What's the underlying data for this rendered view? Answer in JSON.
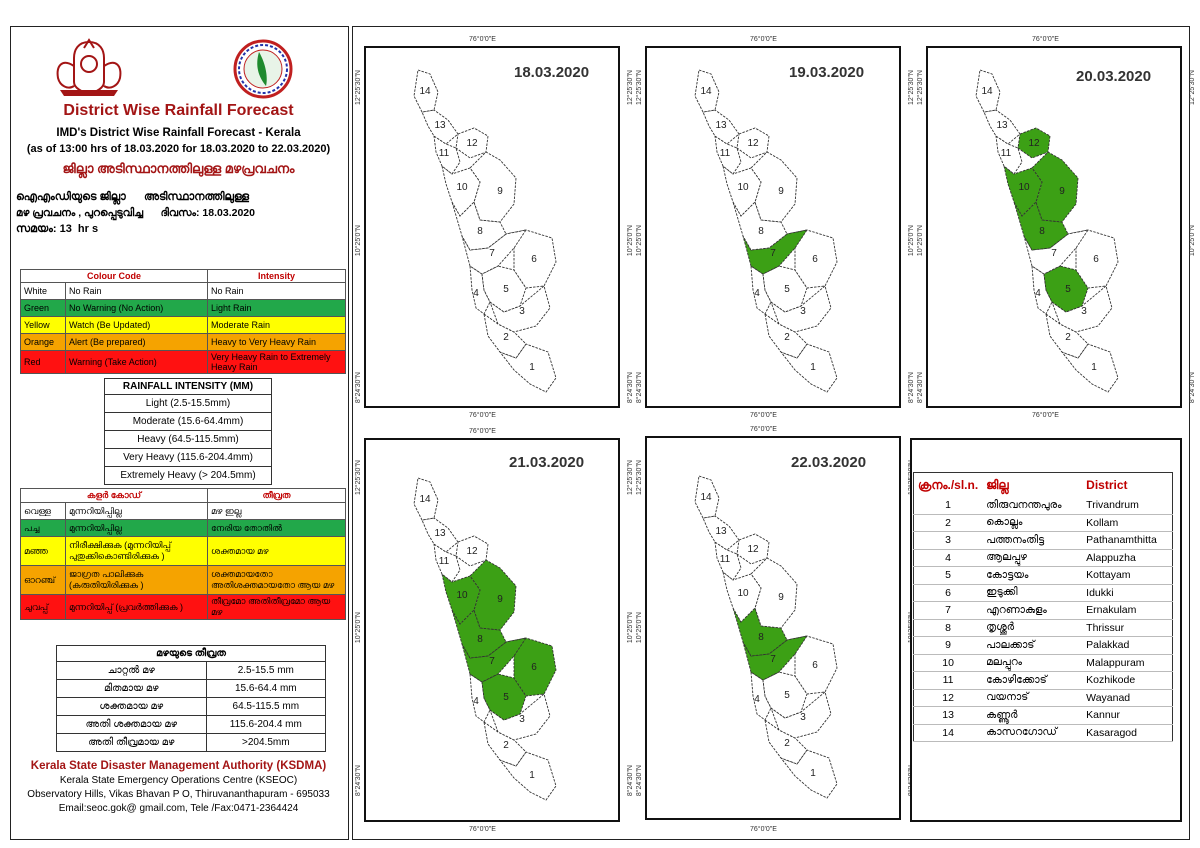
{
  "header": {
    "title": "District Wise Rainfall Forecast",
    "subtitle": "IMD's District Wise Rainfall Forecast - Kerala",
    "issued_line": "(as of 13:00 hrs of 18.03.2020  for 18.03.2020  to 22.03.2020)",
    "title_ml": "ജില്ലാ അടിസ്ഥാനത്തിലുള്ള മഴപ്രവചനം",
    "desc_ml_1": "ഐഎംഡിയുടെ ജില്ലാ      അടിസ്ഥാനത്തിലുള്ള",
    "desc_ml_2": "മഴ പ്രവചനം , പുറപ്പെടുവിച്ച      ദിവസം: 18.03.2020",
    "desc_ml_3": "സമയം: 13  hr s"
  },
  "colour_table": {
    "headers": [
      "Colour Code",
      "Intensity"
    ],
    "rows": [
      {
        "colour": "White",
        "code": "No Rain",
        "intensity": "No Rain",
        "bg": "#ffffff"
      },
      {
        "colour": "Green",
        "code": "No Warning (No Action)",
        "intensity": "Light Rain",
        "bg": "#22a84a"
      },
      {
        "colour": "Yellow",
        "code": "Watch (Be Updated)",
        "intensity": "Moderate Rain",
        "bg": "#ffff00"
      },
      {
        "colour": "Orange",
        "code": "Alert (Be prepared)",
        "intensity": "Heavy to Very Heavy Rain",
        "bg": "#f5a300"
      },
      {
        "colour": "Red",
        "code": "Warning (Take Action)",
        "intensity": "Very Heavy Rain to Extremely Heavy Rain",
        "bg": "#ff1111"
      }
    ]
  },
  "rainfall_intensity": {
    "header": "RAINFALL INTENSITY (MM)",
    "rows": [
      "Light (2.5-15.5mm)",
      "Moderate (15.6-64.4mm)",
      "Heavy (64.5-115.5mm)",
      "Very Heavy (115.6-204.4mm)",
      "Extremely Heavy (> 204.5mm)"
    ]
  },
  "colour_table_ml": {
    "headers": [
      "കളർ കോഡ്",
      "തീവ്രത"
    ],
    "rows": [
      {
        "colour": "വെള്ള",
        "code": "മുന്നറിയിപ്പില്ല",
        "intensity": "മഴ ഇല്ല"
      },
      {
        "colour": "പച്ച",
        "code": "മുന്നറിയിപ്പില്ല",
        "intensity": "നേരിയ തോതിൽ"
      },
      {
        "colour": "മഞ്ഞ",
        "code": "നിരീക്ഷിക്കുക (മുന്നറിയിപ്പ് പുതുക്കികൊണ്ടിരിക്കുക )",
        "intensity": "ശക്തമായ മഴ"
      },
      {
        "colour": "ഓറഞ്ച്",
        "code": "ജാഗ്രത പാലിക്കുക (കരുതിയിരിക്കുക )",
        "intensity": "ശക്തമായതോ അതിശക്തമായതോ ആയ മഴ"
      },
      {
        "colour": "ചുവപ്പ്",
        "code": "മുന്നറിയിപ്പ് (പ്രവർത്തിക്കുക )",
        "intensity": "തീവ്രമോ അതിതീവ്രമോ ആയ മഴ"
      }
    ]
  },
  "intensity_ml": {
    "header": "മഴയുടെ തീവ്രത",
    "rows": [
      {
        "label": "ചാറ്റൽ മഴ",
        "range": "2.5-15.5 mm"
      },
      {
        "label": "മിതമായ മഴ",
        "range": "15.6-64.4 mm"
      },
      {
        "label": "ശക്തമായ മഴ",
        "range": "64.5-115.5 mm"
      },
      {
        "label": "അതി ശക്തമായ മഴ",
        "range": "115.6-204.4 mm"
      },
      {
        "label": "അതി തീവ്രമായ മഴ",
        "range": ">204.5mm"
      }
    ]
  },
  "footer": {
    "org": "Kerala State Disaster Management Authority (KSDMA)",
    "centre": "Kerala State Emergency Operations Centre (KSEOC)",
    "address": "Observatory Hills, Vikas Bhavan P O, Thiruvananthapuram - 695033",
    "contact": "Email:seoc.gok@ gmail.com, Tele /Fax:0471-2364424"
  },
  "map_labels": {
    "lon_top": "76°0'0\"E",
    "lat_top": "12°25'30\"N",
    "lat_mid": "10°25'0\"N",
    "lat_bottom": "8°24'30\"N"
  },
  "maps": [
    {
      "date": "18.03.2020",
      "green": []
    },
    {
      "date": "19.03.2020",
      "green": [
        7
      ]
    },
    {
      "date": "20.03.2020",
      "green": [
        5,
        8,
        9,
        10,
        12
      ]
    },
    {
      "date": "21.03.2020",
      "green": [
        5,
        6,
        7,
        8,
        9,
        10
      ]
    },
    {
      "date": "22.03.2020",
      "green": [
        7,
        8
      ]
    }
  ],
  "colors": {
    "green": "#3ca015",
    "white": "#ffffff",
    "title_red": "#a31515"
  },
  "district_table": {
    "headers": [
      "ക്രനം./sl.n.",
      "ജില്ല",
      "District"
    ],
    "rows": [
      {
        "n": "1",
        "ml": "തിരുവനന്തപുരം",
        "en": "Trivandrum"
      },
      {
        "n": "2",
        "ml": "കൊല്ലം",
        "en": "Kollam"
      },
      {
        "n": "3",
        "ml": "പത്തനംതിട്ട",
        "en": "Pathanamthitta"
      },
      {
        "n": "4",
        "ml": "ആലപ്പുഴ",
        "en": "Alappuzha"
      },
      {
        "n": "5",
        "ml": "കോട്ടയം",
        "en": "Kottayam"
      },
      {
        "n": "6",
        "ml": "ഇടുക്കി",
        "en": "Idukki"
      },
      {
        "n": "7",
        "ml": "എറണാകുളം",
        "en": "Ernakulam"
      },
      {
        "n": "8",
        "ml": "തൃശ്ശൂർ",
        "en": "Thrissur"
      },
      {
        "n": "9",
        "ml": "പാലക്കാട്",
        "en": "Palakkad"
      },
      {
        "n": "10",
        "ml": "മലപ്പുറം",
        "en": "Malappuram"
      },
      {
        "n": "11",
        "ml": "കോഴിക്കോട്",
        "en": "Kozhikode"
      },
      {
        "n": "12",
        "ml": "വയനാട്",
        "en": "Wayanad"
      },
      {
        "n": "13",
        "ml": "കണ്ണൂർ",
        "en": "Kannur"
      },
      {
        "n": "14",
        "ml": "കാസറഗോഡ്",
        "en": "Kasaragod"
      }
    ]
  }
}
